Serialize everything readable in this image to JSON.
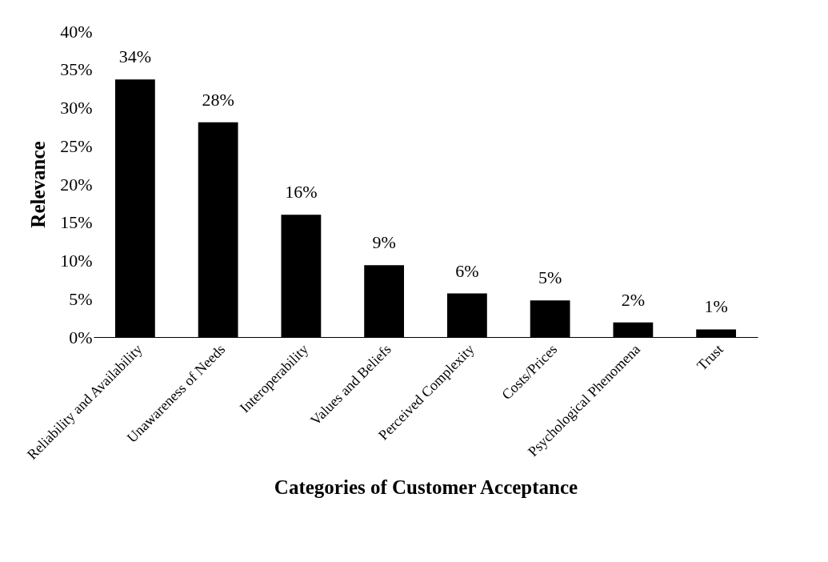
{
  "chart_data": {
    "type": "bar",
    "xlabel": "Categories of Customer Acceptance",
    "ylabel": "Relevance",
    "categories": [
      "Reliability and Availability",
      "Unawareness of Needs",
      "Interoperability",
      "Values and Beliefs",
      "Perceived Complexity",
      "Costs/Prices",
      "Psychological Phenomena",
      "Trust"
    ],
    "values": [
      33.7,
      28.1,
      16,
      9.4,
      5.7,
      4.8,
      1.9,
      1.0
    ],
    "value_labels": [
      "34%",
      "28%",
      "16%",
      "9%",
      "6%",
      "5%",
      "2%",
      "1%"
    ],
    "color": "#000000",
    "ylim": [
      0,
      40
    ],
    "yticks": [
      {
        "value": 0,
        "label": "0%"
      },
      {
        "value": 5,
        "label": "5%"
      },
      {
        "value": 10,
        "label": "10%"
      },
      {
        "value": 15,
        "label": "15%"
      },
      {
        "value": 20,
        "label": "20%"
      },
      {
        "value": 25,
        "label": "25%"
      },
      {
        "value": 30,
        "label": "30%"
      },
      {
        "value": 35,
        "label": "35%"
      },
      {
        "value": 40,
        "label": "40%"
      }
    ],
    "grid": false
  }
}
